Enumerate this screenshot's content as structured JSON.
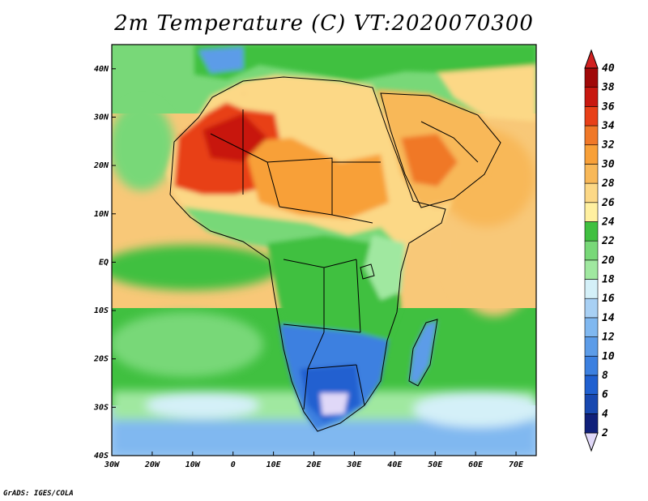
{
  "title": "2m Temperature (C) VT:2020070300",
  "credit": "GrADS: IGES/COLA",
  "map": {
    "lon_range": [
      -30,
      75
    ],
    "lat_range": [
      -40,
      45
    ],
    "x_ticks": [
      {
        "lon": -30,
        "label": "30W"
      },
      {
        "lon": -20,
        "label": "20W"
      },
      {
        "lon": -10,
        "label": "10W"
      },
      {
        "lon": 0,
        "label": "0"
      },
      {
        "lon": 10,
        "label": "10E"
      },
      {
        "lon": 20,
        "label": "20E"
      },
      {
        "lon": 30,
        "label": "30E"
      },
      {
        "lon": 40,
        "label": "40E"
      },
      {
        "lon": 50,
        "label": "50E"
      },
      {
        "lon": 60,
        "label": "60E"
      },
      {
        "lon": 70,
        "label": "70E"
      }
    ],
    "y_ticks": [
      {
        "lat": 40,
        "label": "40N"
      },
      {
        "lat": 30,
        "label": "30N"
      },
      {
        "lat": 20,
        "label": "20N"
      },
      {
        "lat": 10,
        "label": "10N"
      },
      {
        "lat": 0,
        "label": "EQ"
      },
      {
        "lat": -10,
        "label": "10S"
      },
      {
        "lat": -20,
        "label": "20S"
      },
      {
        "lat": -30,
        "label": "30S"
      },
      {
        "lat": -40,
        "label": "40S"
      }
    ]
  },
  "colorbar": {
    "labels": [
      "2",
      "4",
      "6",
      "8",
      "10",
      "12",
      "14",
      "16",
      "18",
      "20",
      "22",
      "24",
      "26",
      "28",
      "30",
      "32",
      "34",
      "36",
      "38",
      "40"
    ],
    "colors": [
      "#e0d8f8",
      "#10207a",
      "#1848b0",
      "#2060d0",
      "#3c80e0",
      "#5c9ce8",
      "#80b8f0",
      "#a8d0f4",
      "#d4f0f8",
      "#a0e8a0",
      "#78d878",
      "#40c040",
      "#fff0a0",
      "#fcd886",
      "#f8b858",
      "#f8a038",
      "#f07828",
      "#e84018",
      "#c81810",
      "#a00808",
      "#d02020"
    ]
  },
  "regions": [
    {
      "name": "ocean-north-atlantic",
      "color": "#78d878"
    },
    {
      "name": "ocean-tropical-atlantic",
      "color": "#f8c878"
    },
    {
      "name": "ocean-south-atlantic",
      "color": "#40c040"
    },
    {
      "name": "ocean-indian",
      "color": "#f8c878"
    },
    {
      "name": "ocean-southern",
      "color": "#a8d0f4"
    },
    {
      "name": "land-sahara-west",
      "color": "#e84018"
    },
    {
      "name": "land-sahara",
      "color": "#f8a038"
    },
    {
      "name": "land-arabia",
      "color": "#f07828"
    },
    {
      "name": "land-sahel",
      "color": "#fcd886"
    },
    {
      "name": "land-central-africa",
      "color": "#40c040"
    },
    {
      "name": "land-southern-africa",
      "color": "#3c80e0"
    },
    {
      "name": "land-europe",
      "color": "#40c040"
    }
  ]
}
